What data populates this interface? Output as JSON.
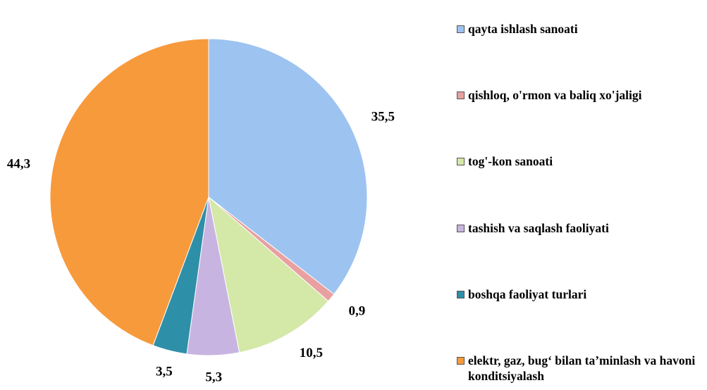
{
  "chart_data": {
    "type": "pie",
    "categories": [
      "qayta ishlash sanoati",
      "qishloq, o'rmon va baliq xo'jaligi",
      "tog'-kon sanoati",
      "tashish va saqlash faoliyati",
      "boshqa faoliyat turlari",
      "elektr, gaz, bug‘ bilan ta’minlash va havoni konditsiyalash"
    ],
    "values": [
      35.5,
      0.9,
      10.5,
      5.3,
      3.5,
      44.3
    ],
    "value_labels": [
      "35,5",
      "0,9",
      "10,5",
      "5,3",
      "3,5",
      "44,3"
    ],
    "colors": [
      "#9dc3f0",
      "#e8a0a0",
      "#d4e8a8",
      "#c8b4e0",
      "#2e8fa8",
      "#f79a3c"
    ],
    "legend": "right"
  }
}
